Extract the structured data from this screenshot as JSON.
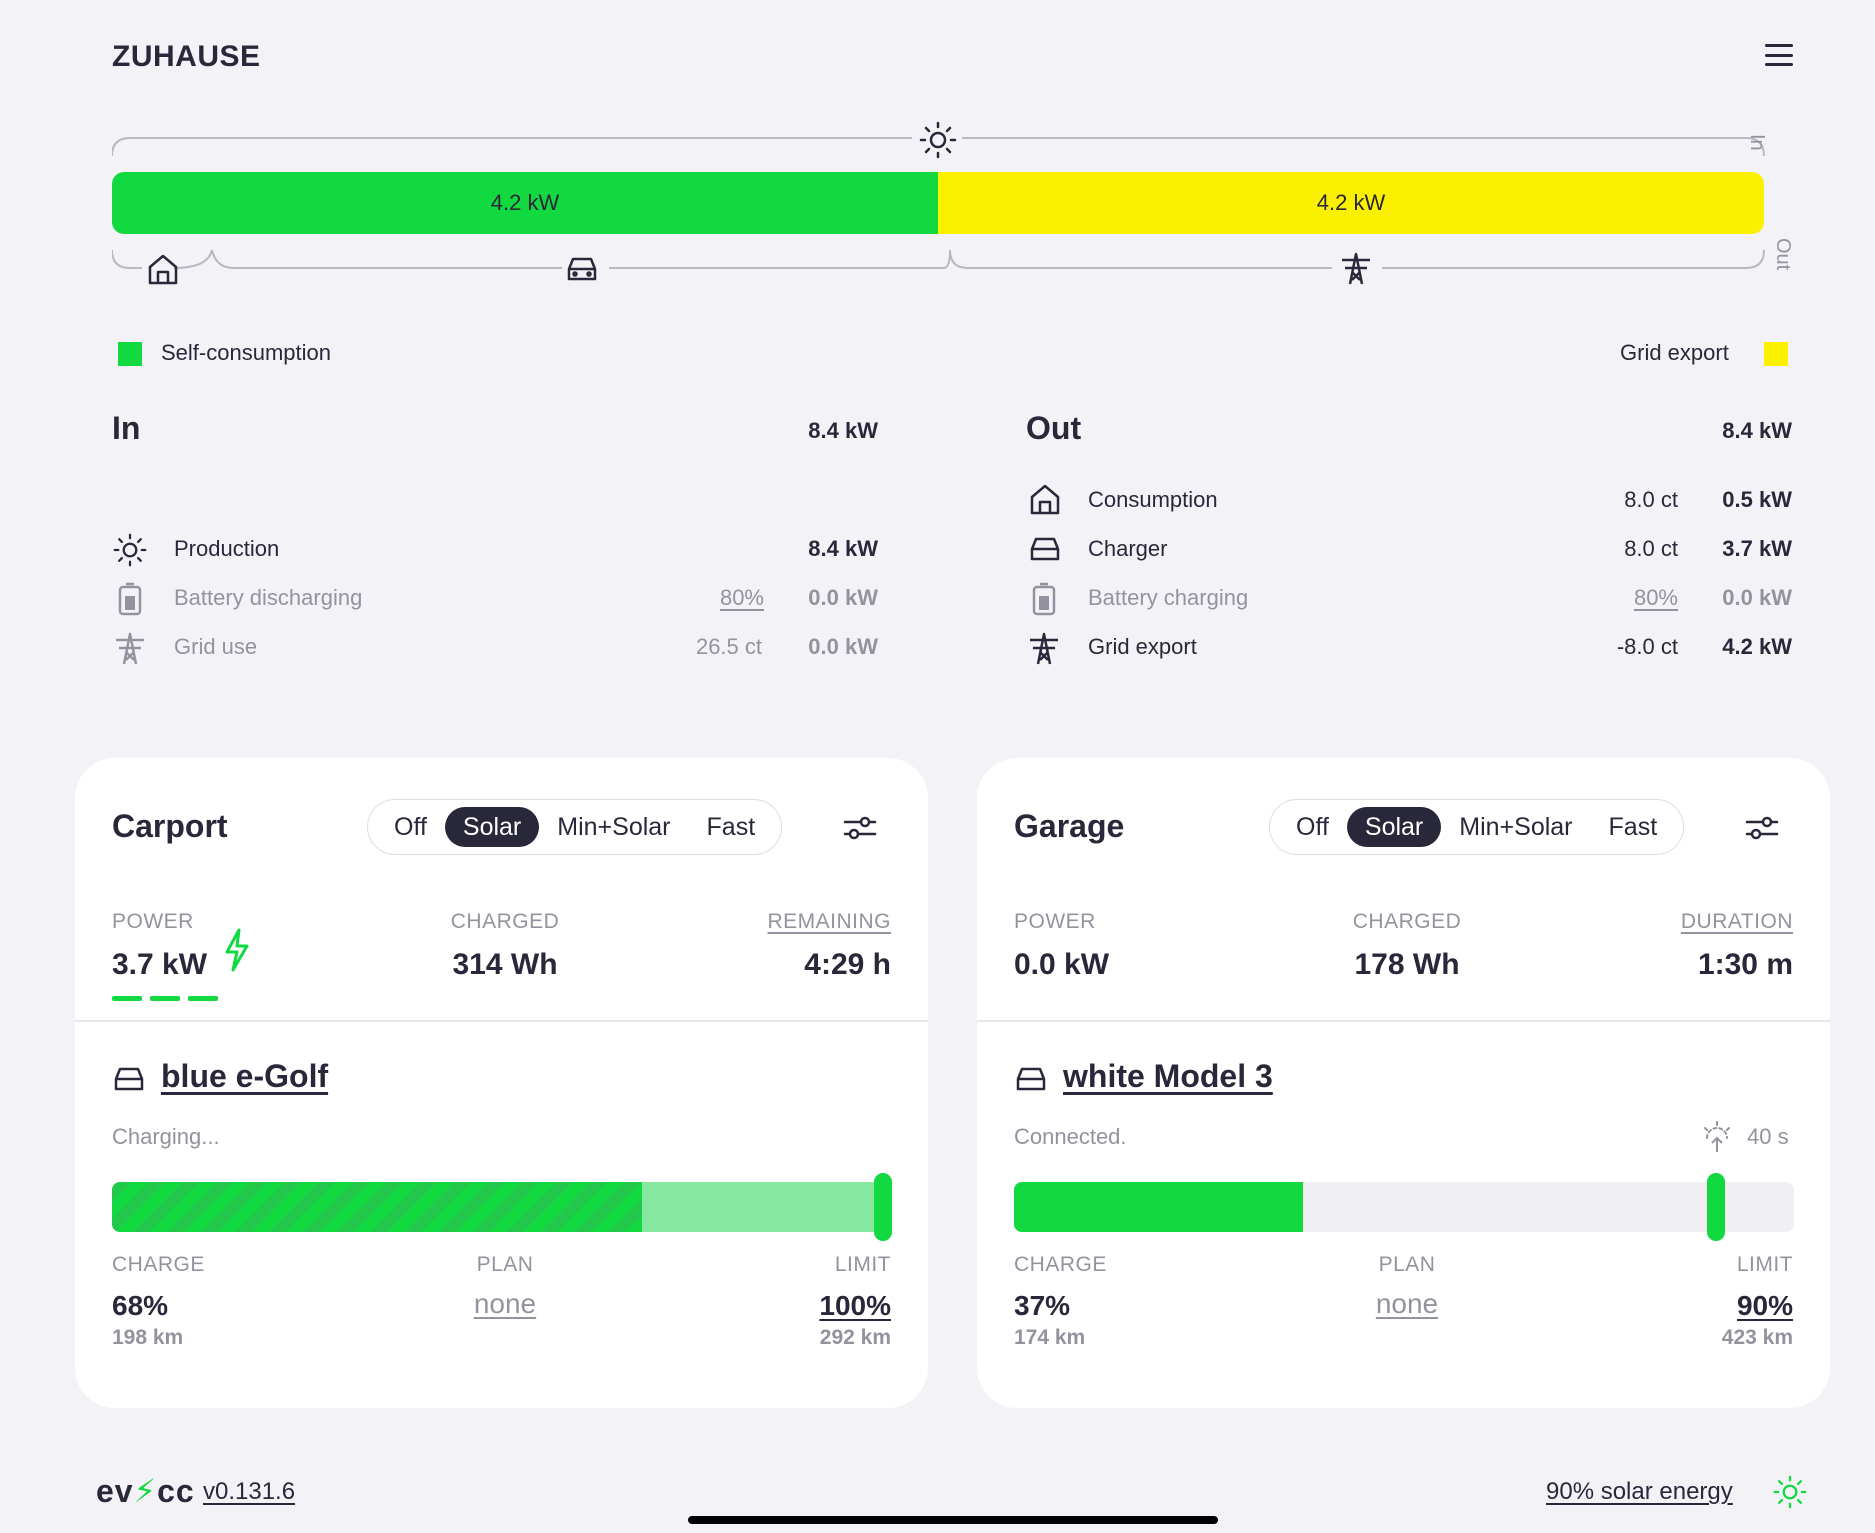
{
  "header": {
    "title": "ZUHAUSE"
  },
  "energyflow": {
    "bar": {
      "left_label": "4.2 kW",
      "right_label": "4.2 kW",
      "left_share": 0.5,
      "right_share": 0.5
    },
    "side_in_label": "In",
    "side_out_label": "Out",
    "legend": {
      "self": "Self-consumption",
      "export": "Grid export"
    },
    "colors": {
      "self": "#12d93f",
      "export": "#faf000"
    }
  },
  "in": {
    "title": "In",
    "total": "8.4 kW",
    "rows": [
      {
        "label": "Production",
        "value": "8.4 kW",
        "extra": ""
      },
      {
        "label": "Battery discharging",
        "value": "0.0 kW",
        "extra": "80%"
      },
      {
        "label": "Grid use",
        "value": "0.0 kW",
        "extra": "26.5 ct"
      }
    ]
  },
  "out": {
    "title": "Out",
    "total": "8.4 kW",
    "rows": [
      {
        "label": "Consumption",
        "value": "0.5 kW",
        "extra": "8.0 ct"
      },
      {
        "label": "Charger",
        "value": "3.7 kW",
        "extra": "8.0 ct"
      },
      {
        "label": "Battery charging",
        "value": "0.0 kW",
        "extra": "80%"
      },
      {
        "label": "Grid export",
        "value": "4.2 kW",
        "extra": "-8.0 ct"
      }
    ]
  },
  "modes": [
    "Off",
    "Solar",
    "Min+Solar",
    "Fast"
  ],
  "loadpoints": [
    {
      "title": "Carport",
      "active_mode": "Solar",
      "power_label": "POWER",
      "power": "3.7 kW",
      "charged_label": "CHARGED",
      "charged": "314 Wh",
      "third_label": "REMAINING",
      "third": "4:29 h",
      "vehicle": "blue e-Golf",
      "status": "Charging...",
      "charge_pct": 0.68,
      "limit_pct": 1.0,
      "charge_label": "CHARGE",
      "charge": "68%",
      "charge_km": "198 km",
      "plan_label": "PLAN",
      "plan": "none",
      "limit_label": "LIMIT",
      "limit": "100%",
      "limit_km": "292 km"
    },
    {
      "title": "Garage",
      "active_mode": "Solar",
      "power_label": "POWER",
      "power": "0.0 kW",
      "charged_label": "CHARGED",
      "charged": "178 Wh",
      "third_label": "DURATION",
      "third": "1:30 m",
      "vehicle": "white Model 3",
      "status": "Connected.",
      "timer": "40 s",
      "charge_pct": 0.37,
      "limit_pct": 0.9,
      "charge_label": "CHARGE",
      "charge": "37%",
      "charge_km": "174 km",
      "plan_label": "PLAN",
      "plan": "none",
      "limit_label": "LIMIT",
      "limit": "90%",
      "limit_km": "423 km"
    }
  ],
  "footer": {
    "logo": "evcc",
    "version": "v0.131.6",
    "solar": "90% solar energy"
  }
}
